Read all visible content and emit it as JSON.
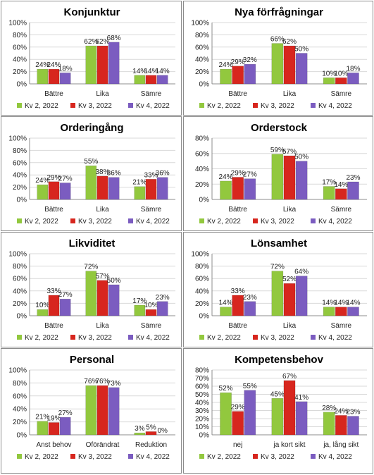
{
  "legend": [
    "Kv 2, 2022",
    "Kv 3, 2022",
    "Kv 4, 2022"
  ],
  "colors": {
    "green": "#92c83e",
    "red": "#d7261e",
    "purple": "#7b5cc0",
    "gridline": "#d9d9d9",
    "axis": "#8c8c8c"
  },
  "chart_data": [
    {
      "type": "bar",
      "title": "Konjunktur",
      "categories": [
        "Bättre",
        "Lika",
        "Sämre"
      ],
      "series": [
        {
          "name": "Kv 2, 2022",
          "values": [
            24,
            62,
            14
          ],
          "labels": [
            "24%",
            "62%",
            "14%"
          ]
        },
        {
          "name": "Kv 3, 2022",
          "values": [
            24,
            62,
            14
          ],
          "labels": [
            "24%",
            "62%",
            "14%"
          ]
        },
        {
          "name": "Kv 4, 2022",
          "values": [
            18,
            68,
            14
          ],
          "labels": [
            "18%",
            "68%",
            "14%"
          ]
        }
      ],
      "yticks": [
        "0%",
        "20%",
        "40%",
        "60%",
        "80%",
        "100%"
      ],
      "ylim": [
        0,
        100
      ],
      "grid": true,
      "legend": "bottom"
    },
    {
      "type": "bar",
      "title": "Nya förfrågningar",
      "categories": [
        "Bättre",
        "Lika",
        "Sämre"
      ],
      "series": [
        {
          "name": "Kv 2, 2022",
          "values": [
            24,
            66,
            10
          ],
          "labels": [
            "24%",
            "66%",
            "10%"
          ]
        },
        {
          "name": "Kv 3, 2022",
          "values": [
            29,
            62,
            10
          ],
          "labels": [
            "29%",
            "62%",
            "10%"
          ]
        },
        {
          "name": "Kv 4, 2022",
          "values": [
            32,
            50,
            18
          ],
          "labels": [
            "32%",
            "50%",
            "18%"
          ]
        }
      ],
      "yticks": [
        "0%",
        "20%",
        "40%",
        "60%",
        "80%",
        "100%"
      ],
      "ylim": [
        0,
        100
      ],
      "grid": true,
      "legend": "bottom"
    },
    {
      "type": "bar",
      "title": "Orderingång",
      "categories": [
        "Bättre",
        "Lika",
        "Sämre"
      ],
      "series": [
        {
          "name": "Kv 2, 2022",
          "values": [
            24,
            55,
            21
          ],
          "labels": [
            "24%",
            "55%",
            "21%"
          ]
        },
        {
          "name": "Kv 3, 2022",
          "values": [
            29,
            38,
            33
          ],
          "labels": [
            "29%",
            "38%",
            "33%"
          ]
        },
        {
          "name": "Kv 4, 2022",
          "values": [
            27,
            36,
            36
          ],
          "labels": [
            "27%",
            "36%",
            "36%"
          ]
        }
      ],
      "yticks": [
        "0%",
        "20%",
        "40%",
        "60%",
        "80%",
        "100%"
      ],
      "ylim": [
        0,
        100
      ],
      "grid": true,
      "legend": "bottom"
    },
    {
      "type": "bar",
      "title": "Orderstock",
      "categories": [
        "Bättre",
        "Lika",
        "Sämre"
      ],
      "series": [
        {
          "name": "Kv 2, 2022",
          "values": [
            24,
            59,
            17
          ],
          "labels": [
            "24%",
            "59%",
            "17%"
          ]
        },
        {
          "name": "Kv 3, 2022",
          "values": [
            29,
            57,
            14
          ],
          "labels": [
            "29%",
            "57%",
            "14%"
          ]
        },
        {
          "name": "Kv 4, 2022",
          "values": [
            27,
            50,
            23
          ],
          "labels": [
            "27%",
            "50%",
            "23%"
          ]
        }
      ],
      "yticks": [
        "0%",
        "20%",
        "40%",
        "60%",
        "80%"
      ],
      "ylim": [
        0,
        80
      ],
      "grid": true,
      "legend": "bottom"
    },
    {
      "type": "bar",
      "title": "Likviditet",
      "categories": [
        "Bättre",
        "Lika",
        "Sämre"
      ],
      "series": [
        {
          "name": "Kv 2, 2022",
          "values": [
            10,
            72,
            17
          ],
          "labels": [
            "10%",
            "72%",
            "17%"
          ]
        },
        {
          "name": "Kv 3, 2022",
          "values": [
            33,
            57,
            10
          ],
          "labels": [
            "33%",
            "57%",
            "10%"
          ]
        },
        {
          "name": "Kv 4, 2022",
          "values": [
            27,
            50,
            23
          ],
          "labels": [
            "27%",
            "50%",
            "23%"
          ]
        }
      ],
      "yticks": [
        "0%",
        "20%",
        "40%",
        "60%",
        "80%",
        "100%"
      ],
      "ylim": [
        0,
        100
      ],
      "grid": true,
      "legend": "bottom"
    },
    {
      "type": "bar",
      "title": "Lönsamhet",
      "categories": [
        "Bättre",
        "Lika",
        "Sämre"
      ],
      "series": [
        {
          "name": "Kv 2, 2022",
          "values": [
            14,
            72,
            14
          ],
          "labels": [
            "14%",
            "72%",
            "14%"
          ]
        },
        {
          "name": "Kv 3, 2022",
          "values": [
            33,
            52,
            14
          ],
          "labels": [
            "33%",
            "52%",
            "14%"
          ]
        },
        {
          "name": "Kv 4, 2022",
          "values": [
            23,
            64,
            14
          ],
          "labels": [
            "23%",
            "64%",
            "14%"
          ]
        }
      ],
      "yticks": [
        "0%",
        "20%",
        "40%",
        "60%",
        "80%",
        "100%"
      ],
      "ylim": [
        0,
        100
      ],
      "grid": true,
      "legend": "bottom"
    },
    {
      "type": "bar",
      "title": "Personal",
      "categories": [
        "Anst behov",
        "Oförändrat",
        "Reduktion"
      ],
      "series": [
        {
          "name": "Kv 2, 2022",
          "values": [
            21,
            76,
            3
          ],
          "labels": [
            "21%",
            "76%",
            "3%"
          ]
        },
        {
          "name": "Kv 3, 2022",
          "values": [
            19,
            76,
            5
          ],
          "labels": [
            "19%",
            "76%",
            "5%"
          ]
        },
        {
          "name": "Kv 4, 2022",
          "values": [
            27,
            73,
            0
          ],
          "labels": [
            "27%",
            "73%",
            "0%"
          ]
        }
      ],
      "yticks": [
        "0%",
        "20%",
        "40%",
        "60%",
        "80%",
        "100%"
      ],
      "ylim": [
        0,
        100
      ],
      "grid": true,
      "legend": "bottom"
    },
    {
      "type": "bar",
      "title": "Kompetensbehov",
      "categories": [
        "nej",
        "ja kort sikt",
        "ja, lång sikt"
      ],
      "series": [
        {
          "name": "Kv 2, 2022",
          "values": [
            52,
            45,
            28
          ],
          "labels": [
            "52%",
            "45%",
            "28%"
          ]
        },
        {
          "name": "Kv 3, 2022",
          "values": [
            29,
            67,
            24
          ],
          "labels": [
            "29%",
            "67%",
            "24%"
          ]
        },
        {
          "name": "Kv 4, 2022",
          "values": [
            55,
            41,
            23
          ],
          "labels": [
            "55%",
            "41%",
            "23%"
          ]
        }
      ],
      "yticks": [
        "0%",
        "10%",
        "20%",
        "30%",
        "40%",
        "50%",
        "60%",
        "70%",
        "80%"
      ],
      "ylim": [
        0,
        80
      ],
      "grid": true,
      "legend": "bottom"
    }
  ]
}
